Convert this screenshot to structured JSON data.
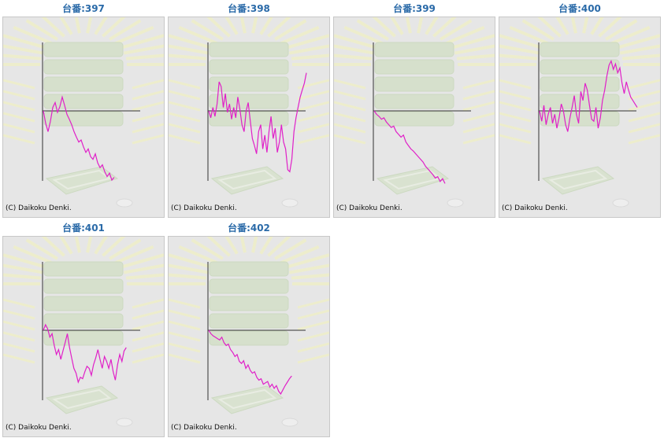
{
  "line_color": "#e020c8",
  "axis_color": "#333333",
  "copyright": "(C) Daikoku Denki.",
  "chart_data": [
    {
      "type": "line",
      "title": "台番:397",
      "ylim": [
        -1,
        1
      ],
      "x": [
        0,
        1,
        2,
        3,
        4,
        5,
        6,
        7,
        8,
        9,
        10,
        11,
        12,
        13,
        14,
        15,
        16,
        17,
        18,
        19,
        20,
        21,
        22,
        23,
        24,
        25,
        26,
        27,
        28,
        29,
        30
      ],
      "values": [
        0.0,
        -0.18,
        -0.3,
        -0.15,
        0.05,
        0.12,
        -0.02,
        0.06,
        0.2,
        0.08,
        -0.05,
        -0.12,
        -0.2,
        -0.3,
        -0.38,
        -0.45,
        -0.42,
        -0.52,
        -0.6,
        -0.55,
        -0.66,
        -0.7,
        -0.62,
        -0.75,
        -0.82,
        -0.78,
        -0.88,
        -0.95,
        -0.9,
        -1.0,
        -0.96
      ]
    },
    {
      "type": "line",
      "title": "台番:398",
      "ylim": [
        -1,
        1
      ],
      "x": [
        0,
        1,
        2,
        3,
        4,
        5,
        6,
        7,
        8,
        9,
        10,
        11,
        12,
        13,
        14,
        15,
        16,
        17,
        18,
        19,
        20,
        21,
        22,
        23,
        24,
        25,
        26,
        27,
        28,
        29,
        30,
        31,
        32,
        33,
        34,
        35,
        36,
        37,
        38,
        39,
        40,
        41,
        42,
        43,
        44,
        45,
        46,
        47
      ],
      "values": [
        0.0,
        -0.1,
        0.05,
        -0.08,
        0.1,
        0.42,
        0.35,
        0.05,
        0.25,
        -0.02,
        0.1,
        -0.12,
        0.05,
        -0.1,
        0.2,
        0.02,
        -0.2,
        -0.3,
        0.0,
        0.12,
        -0.15,
        -0.4,
        -0.5,
        -0.62,
        -0.3,
        -0.2,
        -0.55,
        -0.35,
        -0.6,
        -0.3,
        -0.08,
        -0.4,
        -0.25,
        -0.6,
        -0.45,
        -0.2,
        -0.45,
        -0.55,
        -0.85,
        -0.88,
        -0.7,
        -0.3,
        -0.1,
        0.05,
        0.2,
        0.3,
        0.4,
        0.55
      ]
    },
    {
      "type": "line",
      "title": "台番:399",
      "ylim": [
        -1,
        1
      ],
      "x": [
        0,
        1,
        2,
        3,
        4,
        5,
        6,
        7,
        8,
        9,
        10,
        11,
        12,
        13,
        14,
        15,
        16,
        17,
        18,
        19,
        20,
        21,
        22,
        23,
        24,
        25,
        26,
        27,
        28,
        29
      ],
      "values": [
        0.0,
        -0.05,
        -0.08,
        -0.12,
        -0.1,
        -0.16,
        -0.2,
        -0.24,
        -0.22,
        -0.3,
        -0.34,
        -0.38,
        -0.35,
        -0.45,
        -0.5,
        -0.55,
        -0.58,
        -0.62,
        -0.66,
        -0.7,
        -0.74,
        -0.8,
        -0.84,
        -0.88,
        -0.92,
        -0.97,
        -0.95,
        -1.02,
        -0.98,
        -1.05
      ]
    },
    {
      "type": "line",
      "title": "台番:400",
      "ylim": [
        -1,
        1
      ],
      "x": [
        0,
        1,
        2,
        3,
        4,
        5,
        6,
        7,
        8,
        9,
        10,
        11,
        12,
        13,
        14,
        15,
        16,
        17,
        18,
        19,
        20,
        21,
        22,
        23,
        24,
        25,
        26,
        27,
        28,
        29,
        30,
        31,
        32,
        33,
        34,
        35,
        36,
        37,
        38,
        39,
        40,
        41,
        42,
        43,
        44,
        45
      ],
      "values": [
        0.0,
        -0.15,
        0.08,
        -0.2,
        -0.05,
        0.05,
        -0.18,
        -0.05,
        -0.25,
        -0.1,
        0.1,
        0.0,
        -0.2,
        -0.3,
        -0.1,
        0.05,
        0.22,
        -0.05,
        -0.18,
        0.28,
        0.15,
        0.4,
        0.3,
        0.08,
        -0.12,
        -0.15,
        0.05,
        -0.25,
        -0.1,
        0.15,
        0.3,
        0.5,
        0.66,
        0.72,
        0.6,
        0.68,
        0.55,
        0.62,
        0.4,
        0.25,
        0.42,
        0.3,
        0.2,
        0.15,
        0.1,
        0.05
      ]
    },
    {
      "type": "line",
      "title": "台番:401",
      "ylim": [
        -1,
        1
      ],
      "x": [
        0,
        1,
        2,
        3,
        4,
        5,
        6,
        7,
        8,
        9,
        10,
        11,
        12,
        13,
        14,
        15,
        16,
        17,
        18,
        19,
        20,
        21,
        22,
        23,
        24,
        25,
        26,
        27,
        28,
        29,
        30,
        31,
        32,
        33,
        34,
        35,
        36,
        37,
        38
      ],
      "values": [
        0.0,
        0.08,
        0.02,
        -0.1,
        -0.05,
        -0.22,
        -0.35,
        -0.28,
        -0.42,
        -0.3,
        -0.18,
        -0.05,
        -0.25,
        -0.4,
        -0.55,
        -0.62,
        -0.75,
        -0.68,
        -0.7,
        -0.6,
        -0.52,
        -0.55,
        -0.65,
        -0.5,
        -0.4,
        -0.28,
        -0.42,
        -0.55,
        -0.38,
        -0.45,
        -0.55,
        -0.42,
        -0.6,
        -0.72,
        -0.5,
        -0.35,
        -0.45,
        -0.3,
        -0.25
      ]
    },
    {
      "type": "line",
      "title": "台番:402",
      "ylim": [
        -1,
        1
      ],
      "x": [
        0,
        1,
        2,
        3,
        4,
        5,
        6,
        7,
        8,
        9,
        10,
        11,
        12,
        13,
        14,
        15,
        16,
        17,
        18,
        19,
        20,
        21,
        22,
        23,
        24,
        25,
        26,
        27,
        28,
        29,
        30,
        31,
        32,
        33,
        34,
        35,
        36,
        37,
        38
      ],
      "values": [
        0.0,
        -0.05,
        -0.08,
        -0.1,
        -0.12,
        -0.14,
        -0.1,
        -0.18,
        -0.22,
        -0.2,
        -0.28,
        -0.32,
        -0.38,
        -0.35,
        -0.45,
        -0.48,
        -0.44,
        -0.55,
        -0.5,
        -0.58,
        -0.62,
        -0.6,
        -0.68,
        -0.72,
        -0.7,
        -0.78,
        -0.76,
        -0.74,
        -0.82,
        -0.78,
        -0.84,
        -0.8,
        -0.88,
        -0.92,
        -0.86,
        -0.8,
        -0.75,
        -0.7,
        -0.66
      ]
    }
  ]
}
